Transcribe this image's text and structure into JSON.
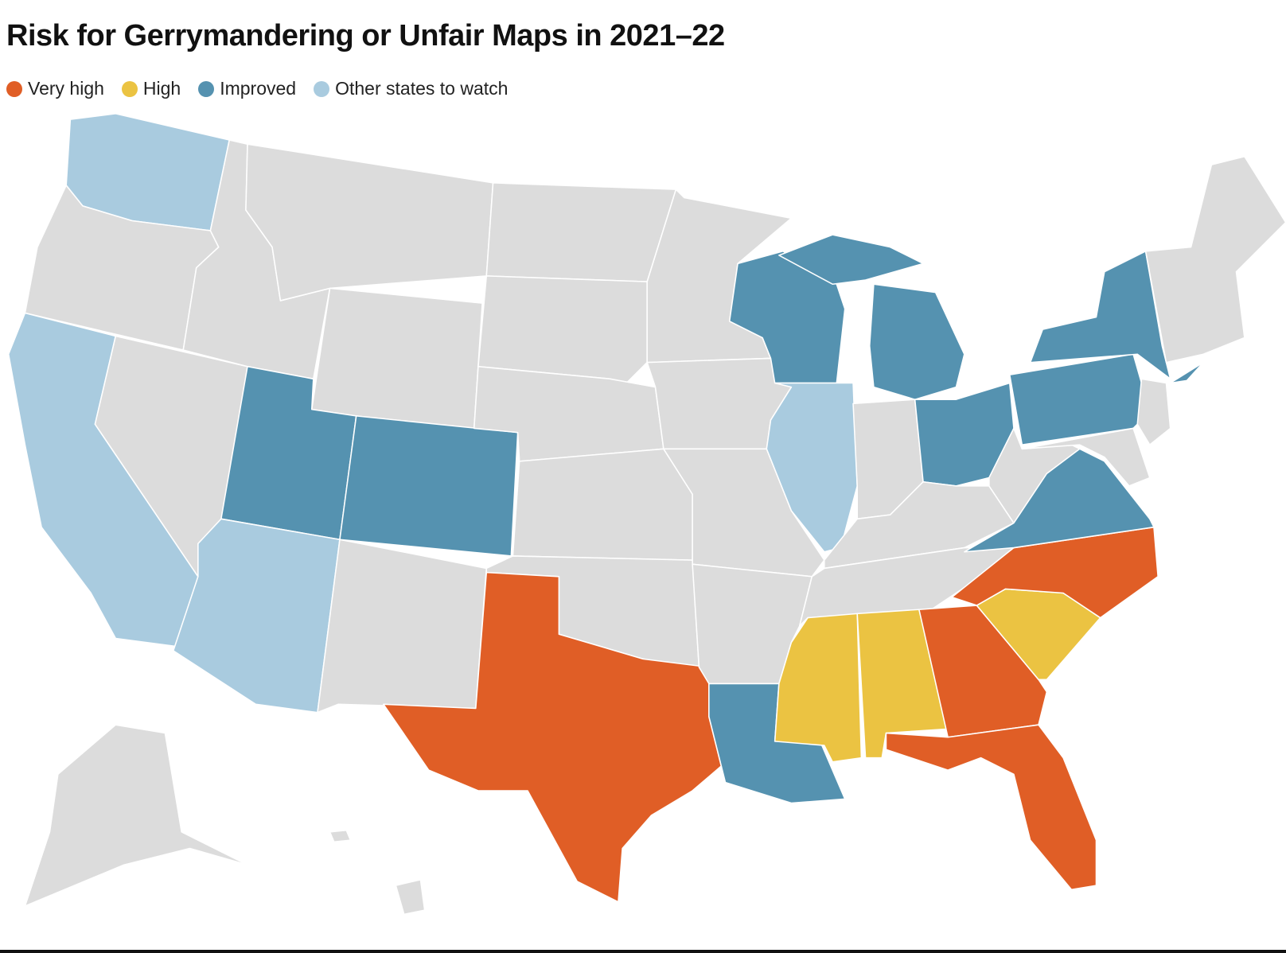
{
  "header": {
    "title": "Risk for Gerrymandering or Unfair Maps in 2021–22"
  },
  "legend": [
    {
      "label": "Very high",
      "color": "#e05e26"
    },
    {
      "label": "High",
      "color": "#ebc342"
    },
    {
      "label": "Improved",
      "color": "#5592b0"
    },
    {
      "label": "Other states to watch",
      "color": "#a9cbdf"
    }
  ]
}
